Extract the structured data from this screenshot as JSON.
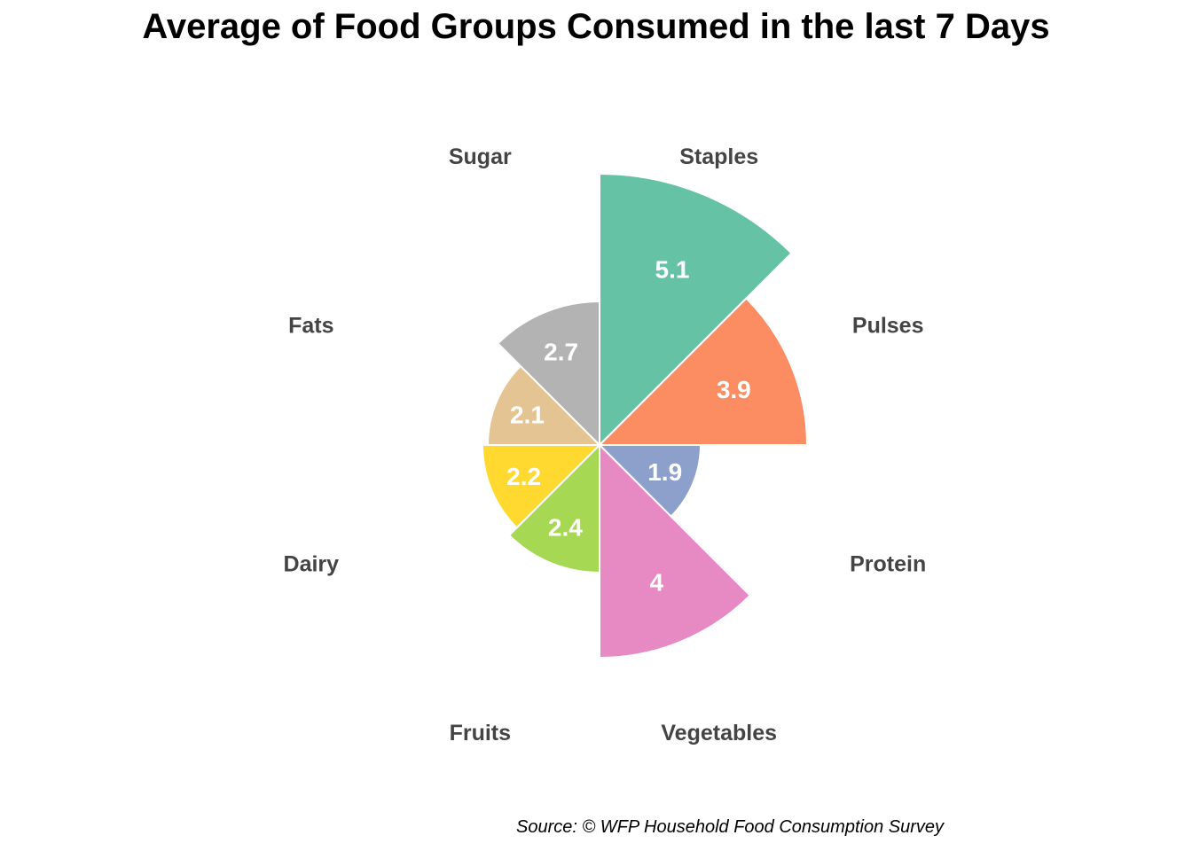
{
  "chart_data": {
    "type": "polar_bar",
    "title": "Average of Food Groups Consumed in the last 7 Days",
    "caption": "Source: © WFP Household Food Consumption Survey",
    "categories": [
      "Staples",
      "Pulses",
      "Protein",
      "Vegetables",
      "Fruits",
      "Dairy",
      "Fats",
      "Sugar"
    ],
    "values": [
      5.1,
      3.9,
      1.9,
      4,
      2.4,
      2.2,
      2.1,
      2.7
    ],
    "value_labels": [
      "5.1",
      "3.9",
      "1.9",
      "4",
      "2.4",
      "2.2",
      "2.1",
      "2.7"
    ],
    "colors": [
      "#66c2a5",
      "#fc8d62",
      "#8da0cb",
      "#e78ac3",
      "#a6d854",
      "#ffd92f",
      "#e5c494",
      "#b3b3b3"
    ],
    "grid": false,
    "legend": "none"
  }
}
